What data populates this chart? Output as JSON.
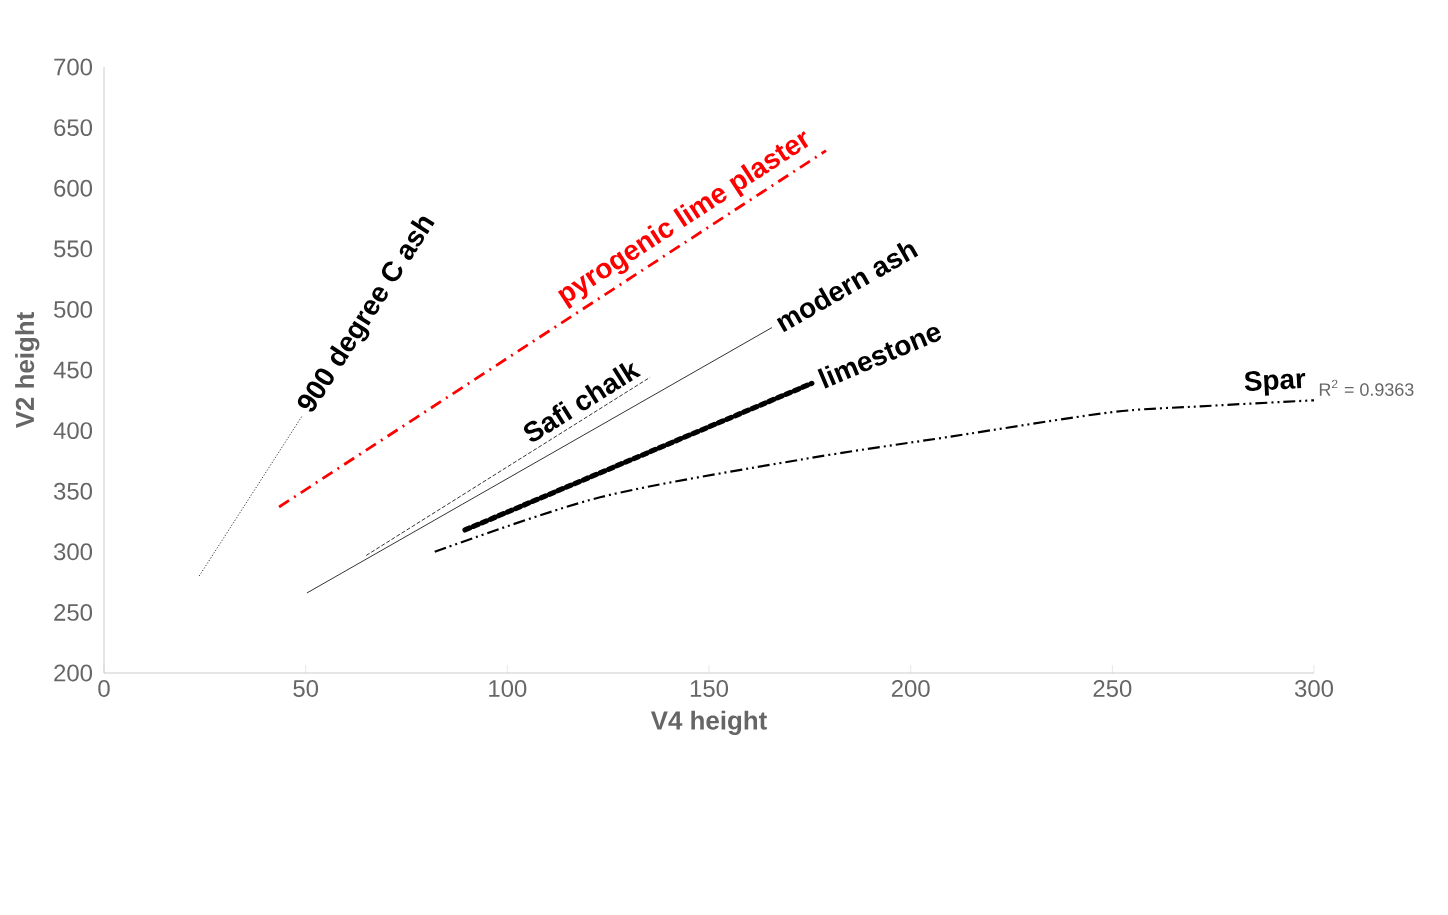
{
  "chart_data": {
    "type": "line",
    "xlabel": "V4 height",
    "ylabel": "V2 height",
    "xlim": [
      0,
      300
    ],
    "ylim": [
      200,
      700
    ],
    "xticks": [
      0,
      50,
      100,
      150,
      200,
      250,
      300
    ],
    "yticks": [
      200,
      250,
      300,
      350,
      400,
      450,
      500,
      550,
      600,
      650,
      700
    ],
    "grid": false,
    "marker": "none",
    "series": [
      {
        "name": "900 degree C ash",
        "color": "#000000",
        "line_style": "dotted",
        "x": [
          23.6,
          49.1
        ],
        "values": [
          280,
          412
        ]
      },
      {
        "name": "pyrogenic lime plaster",
        "color": "#ff0000",
        "line_style": "dashdot",
        "x": [
          43.4,
          179
        ],
        "values": [
          337,
          631
        ]
      },
      {
        "name": "Safi chalk",
        "color": "#000000",
        "line_style": "dashed",
        "x": [
          65,
          135.4
        ],
        "values": [
          297,
          444
        ]
      },
      {
        "name": "modern ash",
        "color": "#000000",
        "line_style": "solid",
        "x": [
          50.3,
          165.6
        ],
        "values": [
          266,
          485
        ]
      },
      {
        "name": "limestone",
        "color": "#000000",
        "line_style": "densely dotted",
        "x": [
          89.5,
          175.5
        ],
        "values": [
          318,
          439
        ]
      },
      {
        "name": "Spar",
        "color": "#000000",
        "line_style": "dashdotdot",
        "x": [
          82,
          123,
          172.6,
          209.8,
          249.4,
          271.8,
          300
        ],
        "values": [
          300,
          345,
          376,
          395,
          415,
          420,
          425
        ]
      }
    ],
    "annotations": [
      {
        "text": "R$^{2}$ = 0.9363",
        "x": 300,
        "y": 425
      }
    ]
  }
}
